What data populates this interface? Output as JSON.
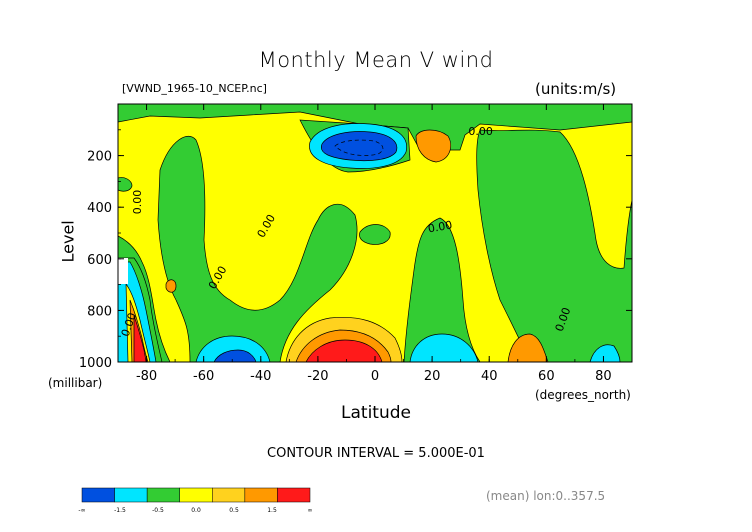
{
  "chart_data": {
    "type": "heatmap",
    "title": "Monthly Mean V wind",
    "source_label": "[VWND_1965-10_NCEP.nc]",
    "units_label": "(units:m/s)",
    "xlabel": "Latitude",
    "xunit_label": "(degrees_north)",
    "ylabel": "Level",
    "yunit_label": "(millibar)",
    "xlim": [
      -90,
      90
    ],
    "ylim": [
      1000,
      0
    ],
    "x_ticks": [
      "-80",
      "-60",
      "-40",
      "-20",
      "0",
      "20",
      "40",
      "60",
      "80"
    ],
    "y_ticks": [
      "200",
      "400",
      "600",
      "800",
      "1000"
    ],
    "contour_interval_text": "CONTOUR INTERVAL = 5.000E-01",
    "mean_info_text": "(mean) lon:0..357.5",
    "contour_labels": [
      "0.00",
      "0.00",
      "0.00",
      "0.00",
      "0.00",
      "0.00",
      "0.00"
    ],
    "colorbar": {
      "labels": [
        "-∞",
        "-1.5",
        "-0.5",
        "0.0",
        "0.5",
        "1.5",
        "∞"
      ],
      "colors": [
        "#0050e0",
        "#00e5ff",
        "#33cc33",
        "#ffff00",
        "#ffd21e",
        "#ff9900",
        "#ff1a1a"
      ]
    },
    "colors": {
      "strong_negative": "#0050e0",
      "negative": "#00e5ff",
      "weak_negative": "#33cc33",
      "weak_positive": "#ffff00",
      "positive": "#ff9900",
      "strong_positive": "#ff1a1a"
    }
  }
}
